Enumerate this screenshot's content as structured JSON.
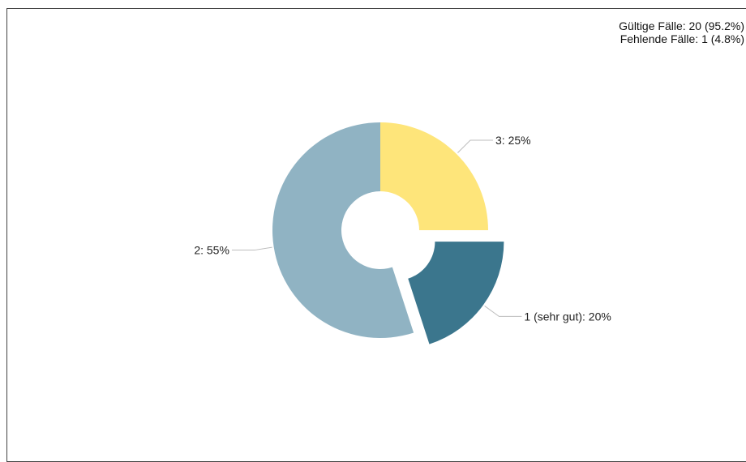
{
  "stats": {
    "valid_cases": "Gültige Fälle: 20 (95.2%)",
    "missing_cases": "Fehlende Fälle: 1 (4.8%)"
  },
  "chart_data": {
    "type": "pie",
    "variant": "donut",
    "title": "",
    "slices": [
      {
        "label": "3: 25%",
        "category": "3",
        "value": 25,
        "color": "#fee57a",
        "exploded": false
      },
      {
        "label": "1 (sehr gut): 20%",
        "category": "1 (sehr gut)",
        "value": 20,
        "color": "#3b768d",
        "exploded": true
      },
      {
        "label": "2: 55%",
        "category": "2",
        "value": 55,
        "color": "#90b3c3",
        "exploded": false
      }
    ]
  }
}
